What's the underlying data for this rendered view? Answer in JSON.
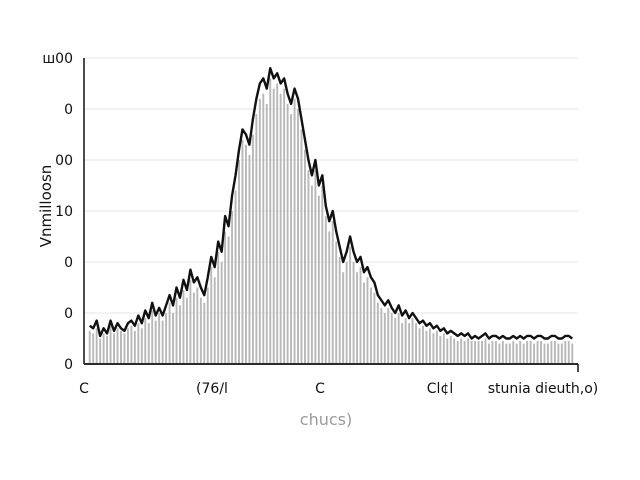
{
  "chart_data": {
    "type": "bar",
    "title": "",
    "xlabel": "chucs)",
    "ylabel": "Vnmilloosn",
    "y_tick_labels": [
      "0",
      "0",
      "0",
      "10",
      "00",
      "0",
      "ш00"
    ],
    "x_tick_labels": [
      "C",
      "(76/l",
      "C",
      "Cl¢l",
      "stunia dieuth,o)"
    ],
    "grid": true,
    "legend": "none",
    "ylim": [
      0,
      6
    ],
    "x": [
      1,
      2,
      3,
      4,
      5,
      6,
      7,
      8,
      9,
      10,
      11,
      12,
      13,
      14,
      15,
      16,
      17,
      18,
      19,
      20,
      21,
      22,
      23,
      24,
      25,
      26,
      27,
      28,
      29,
      30,
      31,
      32,
      33,
      34,
      35,
      36,
      37,
      38,
      39,
      40,
      41,
      42,
      43,
      44,
      45,
      46,
      47,
      48,
      49,
      50,
      51,
      52,
      53,
      54,
      55,
      56,
      57,
      58,
      59,
      60,
      61,
      62,
      63,
      64,
      65,
      66,
      67,
      68,
      69,
      70,
      71,
      72,
      73,
      74,
      75,
      76,
      77,
      78,
      79,
      80,
      81,
      82,
      83,
      84,
      85,
      86,
      87,
      88,
      89,
      90,
      91,
      92,
      93,
      94,
      95,
      96,
      97,
      98,
      99,
      100,
      101,
      102,
      103,
      104,
      105,
      106,
      107,
      108,
      109,
      110,
      111,
      112,
      113,
      114,
      115,
      116,
      117,
      118,
      119,
      120,
      121,
      122,
      123,
      124,
      125,
      126,
      127,
      128,
      129,
      130,
      131,
      132,
      133,
      134,
      135,
      136,
      137,
      138,
      139,
      140
    ],
    "series": [
      {
        "bars": [
          0.65,
          0.6,
          0.7,
          0.5,
          0.6,
          0.55,
          0.75,
          0.6,
          0.7,
          0.65,
          0.6,
          0.7,
          0.75,
          0.65,
          0.8,
          0.7,
          0.9,
          0.8,
          1.05,
          0.85,
          1.0,
          0.85,
          1.0,
          1.2,
          1.0,
          1.3,
          1.15,
          1.45,
          1.3,
          1.65,
          1.4,
          1.5,
          1.3,
          1.2,
          1.5,
          1.9,
          1.7,
          2.2,
          2.0,
          2.6,
          2.5,
          3.0,
          3.4,
          4.0,
          4.4,
          4.3,
          4.1,
          4.5,
          4.9,
          5.2,
          5.3,
          5.1,
          5.6,
          5.4,
          5.5,
          5.3,
          5.4,
          5.1,
          4.9,
          5.2,
          5.0,
          4.6,
          4.2,
          3.8,
          3.5,
          3.8,
          3.3,
          3.5,
          2.9,
          2.6,
          2.8,
          2.4,
          2.1,
          1.8,
          2.0,
          2.3,
          2.0,
          1.8,
          1.9,
          1.6,
          1.7,
          1.5,
          1.4,
          1.2,
          1.1,
          1.0,
          1.1,
          1.0,
          0.9,
          1.0,
          0.8,
          0.9,
          0.8,
          0.9,
          0.8,
          0.7,
          0.75,
          0.65,
          0.7,
          0.6,
          0.65,
          0.55,
          0.6,
          0.5,
          0.55,
          0.5,
          0.45,
          0.5,
          0.45,
          0.5,
          0.45,
          0.45,
          0.45,
          0.45,
          0.5,
          0.4,
          0.45,
          0.45,
          0.4,
          0.45,
          0.4,
          0.4,
          0.45,
          0.4,
          0.45,
          0.4,
          0.45,
          0.45,
          0.4,
          0.45,
          0.45,
          0.4,
          0.4,
          0.45,
          0.45,
          0.4,
          0.4,
          0.45,
          0.45,
          0.4
        ],
        "line": [
          0.75,
          0.7,
          0.85,
          0.55,
          0.7,
          0.6,
          0.85,
          0.65,
          0.8,
          0.7,
          0.65,
          0.8,
          0.85,
          0.75,
          0.95,
          0.8,
          1.05,
          0.9,
          1.2,
          0.95,
          1.1,
          0.95,
          1.15,
          1.35,
          1.15,
          1.5,
          1.3,
          1.65,
          1.45,
          1.85,
          1.6,
          1.7,
          1.5,
          1.35,
          1.7,
          2.1,
          1.9,
          2.4,
          2.2,
          2.9,
          2.7,
          3.3,
          3.7,
          4.2,
          4.6,
          4.5,
          4.3,
          4.8,
          5.2,
          5.5,
          5.6,
          5.4,
          5.8,
          5.6,
          5.7,
          5.5,
          5.6,
          5.3,
          5.1,
          5.4,
          5.2,
          4.8,
          4.4,
          4.0,
          3.7,
          4.0,
          3.5,
          3.7,
          3.1,
          2.8,
          3.0,
          2.6,
          2.3,
          2.0,
          2.2,
          2.5,
          2.2,
          2.0,
          2.1,
          1.8,
          1.9,
          1.7,
          1.6,
          1.35,
          1.25,
          1.15,
          1.25,
          1.1,
          1.0,
          1.15,
          0.95,
          1.05,
          0.9,
          1.0,
          0.9,
          0.8,
          0.85,
          0.75,
          0.8,
          0.7,
          0.75,
          0.65,
          0.7,
          0.6,
          0.65,
          0.6,
          0.55,
          0.6,
          0.55,
          0.6,
          0.5,
          0.55,
          0.5,
          0.55,
          0.6,
          0.5,
          0.55,
          0.55,
          0.5,
          0.55,
          0.5,
          0.5,
          0.55,
          0.5,
          0.55,
          0.5,
          0.55,
          0.55,
          0.5,
          0.55,
          0.55,
          0.5,
          0.5,
          0.55,
          0.55,
          0.5,
          0.5,
          0.55,
          0.55,
          0.5
        ]
      }
    ],
    "colors": {
      "bars": "#b8b8b8",
      "line": "#111111",
      "grid": "#e6e6e6",
      "axis": "#111111"
    }
  }
}
